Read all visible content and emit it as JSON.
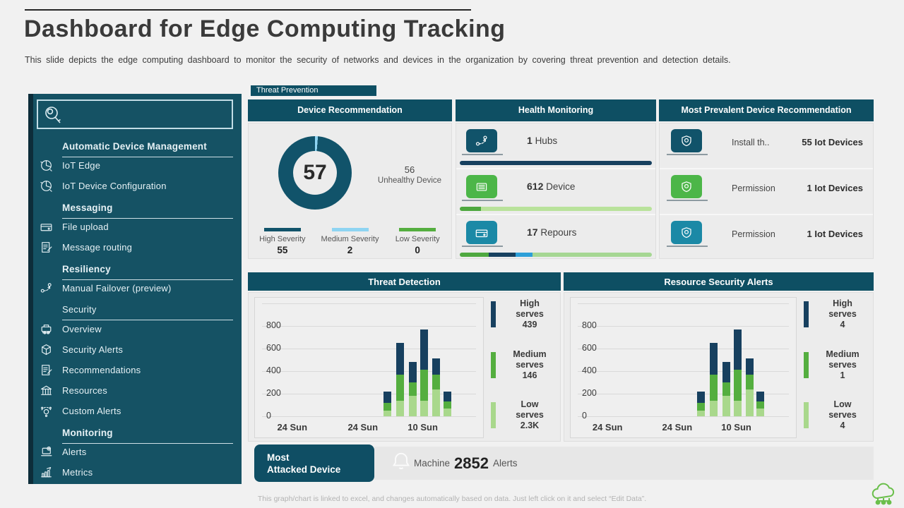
{
  "slide": {
    "title": "Dashboard for Edge Computing Tracking",
    "subtitle": "This slide depicts the edge computing dashboard to monitor the security of networks and devices in the organization by covering threat prevention  and detection details.",
    "footer_note": "This graph/chart is linked to excel, and changes automatically based on data. Just left click on it and select “Edit Data”."
  },
  "colors": {
    "accent_dark_teal": "#0e4f63",
    "sidebar_bg": "#155264",
    "sidebar_edge": "#0d2d3a",
    "panel_bg": "#ececec",
    "high_navy": "#17405f",
    "medium_green": "#54ae3f",
    "low_green": "#a9d88c",
    "light_blue": "#8ed4f2",
    "icon_dark_teal": "#11536a",
    "icon_green": "#4cb648",
    "icon_teal": "#1b89a6",
    "logo_green": "#6abf4b"
  },
  "sidebar": {
    "search_placeholder": "",
    "items": [
      {
        "type": "header",
        "label": "Automatic Device Management"
      },
      {
        "type": "item",
        "icon": "pie",
        "label": "IoT Edge"
      },
      {
        "type": "item",
        "icon": "pie",
        "label": "IoT Device Configuration"
      },
      {
        "type": "header",
        "label": "Messaging"
      },
      {
        "type": "item",
        "icon": "card",
        "label": "File upload"
      },
      {
        "type": "item",
        "icon": "docpen",
        "label": "Message routing"
      },
      {
        "type": "header",
        "label": "Resiliency"
      },
      {
        "type": "item",
        "icon": "flow",
        "label": "Manual Failover (preview)"
      },
      {
        "type": "subheader",
        "label": "Security"
      },
      {
        "type": "item",
        "icon": "printer",
        "label": "Overview"
      },
      {
        "type": "item",
        "icon": "cube",
        "label": "Security Alerts"
      },
      {
        "type": "item",
        "icon": "docpen",
        "label": "Recommendations"
      },
      {
        "type": "item",
        "icon": "bank",
        "label": "Resources"
      },
      {
        "type": "item",
        "icon": "gear",
        "label": "Custom Alerts"
      },
      {
        "type": "header",
        "label": "Monitoring"
      },
      {
        "type": "item",
        "icon": "laptop",
        "label": "Alerts"
      },
      {
        "type": "item",
        "icon": "chart",
        "label": "Metrics"
      }
    ]
  },
  "tab": {
    "label": "Threat Prevention"
  },
  "panels": {
    "device_recommendation": {
      "title": "Device Recommendation",
      "center_value": "57",
      "note_value": "56",
      "note_label": "Unhealthy Device",
      "legend": [
        {
          "label": "High Severity",
          "value": "55",
          "color": "#11536a"
        },
        {
          "label": "Medium Severity",
          "value": "2",
          "color": "#8ed4f2"
        },
        {
          "label": "Low Severity",
          "value": "0",
          "color": "#54ae3f"
        }
      ]
    },
    "health_monitoring": {
      "title": "Health Monitoring",
      "rows": [
        {
          "icon": "flow",
          "icon_color": "#11536a",
          "value": "1",
          "label": "Hubs",
          "bar": [
            {
              "color": "#17405f",
              "pct": 100
            }
          ]
        },
        {
          "icon": "grid",
          "icon_color": "#4cb648",
          "value": "612",
          "label": "Device",
          "bar": [
            {
              "color": "#4ea83f",
              "pct": 11
            },
            {
              "color": "#b9e29b",
              "pct": 89
            }
          ]
        },
        {
          "icon": "card",
          "icon_color": "#1b89a6",
          "value": "17",
          "label": "Repours",
          "bar": [
            {
              "color": "#4ea83f",
              "pct": 15
            },
            {
              "color": "#17405f",
              "pct": 14
            },
            {
              "color": "#2d9fd8",
              "pct": 9
            },
            {
              "color": "#a6d793",
              "pct": 62
            }
          ]
        }
      ]
    },
    "most_prevalent": {
      "title": "Most Prevalent Device Recommendation",
      "rows": [
        {
          "icon": "shield",
          "icon_color": "#11536a",
          "label": "Install th..",
          "value": "55 Iot Devices"
        },
        {
          "icon": "shield",
          "icon_color": "#4cb648",
          "label": "Permission",
          "value": "1 Iot Devices"
        },
        {
          "icon": "shield",
          "icon_color": "#1b89a6",
          "label": "Permission",
          "value": "1 Iot Devices"
        }
      ]
    }
  },
  "most_attacked": {
    "button_line1": "Most",
    "button_line2": "Attacked Device",
    "prefix": "Machine",
    "value": "2852",
    "suffix": "Alerts"
  },
  "chart_data": [
    {
      "id": "threat_detection",
      "type": "stacked-bar",
      "title": "Threat Detection",
      "ylim": [
        0,
        1000
      ],
      "yticks": [
        0,
        200,
        400,
        600,
        800
      ],
      "x_tick_labels": [
        "24 Sun",
        "24 Sun",
        "10 Sun"
      ],
      "grid": true,
      "legend_position": "right",
      "series": [
        {
          "name": "Low serves",
          "color": "#a9d88c",
          "values": [
            50,
            140,
            180,
            140,
            240,
            70
          ]
        },
        {
          "name": "Medium serves",
          "color": "#54ae3f",
          "values": [
            70,
            230,
            120,
            270,
            130,
            60
          ]
        },
        {
          "name": "High serves",
          "color": "#17405f",
          "values": [
            100,
            280,
            180,
            360,
            140,
            90
          ]
        }
      ],
      "legend": [
        {
          "label": "High serves",
          "value": "439",
          "color": "#17405f"
        },
        {
          "label": "Medium serves",
          "value": "146",
          "color": "#54ae3f"
        },
        {
          "label": "Low serves",
          "value": "2.3K",
          "color": "#a9d88c"
        }
      ]
    },
    {
      "id": "resource_security_alerts",
      "type": "stacked-bar",
      "title": "Resource Security Alerts",
      "ylim": [
        0,
        1000
      ],
      "yticks": [
        0,
        200,
        400,
        600,
        800
      ],
      "x_tick_labels": [
        "24 Sun",
        "24 Sun",
        "10 Sun"
      ],
      "grid": true,
      "legend_position": "right",
      "series": [
        {
          "name": "Low serves",
          "color": "#a9d88c",
          "values": [
            50,
            140,
            180,
            140,
            240,
            70
          ]
        },
        {
          "name": "Medium serves",
          "color": "#54ae3f",
          "values": [
            70,
            230,
            120,
            270,
            130,
            60
          ]
        },
        {
          "name": "High serves",
          "color": "#17405f",
          "values": [
            100,
            280,
            180,
            360,
            140,
            90
          ]
        }
      ],
      "legend": [
        {
          "label": "High serves",
          "value": "4",
          "color": "#17405f"
        },
        {
          "label": "Medium serves",
          "value": "1",
          "color": "#54ae3f"
        },
        {
          "label": "Low serves",
          "value": "4",
          "color": "#a9d88c"
        }
      ]
    },
    {
      "id": "device_recommendation_donut",
      "type": "donut",
      "title": "Device Recommendation",
      "center_value": 57,
      "start_angle_deg": -8,
      "segments": [
        {
          "label": "Medium Severity",
          "value": 2,
          "color": "#8ed4f2"
        },
        {
          "label": "High Severity",
          "value": 55,
          "color": "#11536a"
        },
        {
          "label": "Low Severity",
          "value": 0,
          "color": "#54ae3f"
        }
      ],
      "note": {
        "value": "56",
        "label": "Unhealthy Device"
      }
    }
  ]
}
